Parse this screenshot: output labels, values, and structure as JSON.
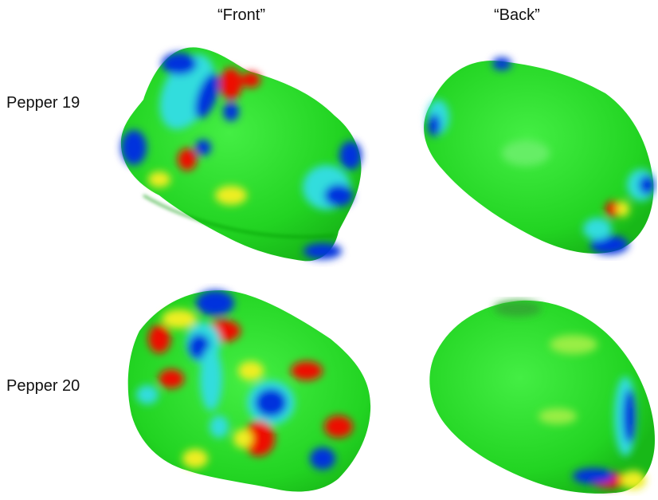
{
  "columns": {
    "front_label": "“Front”",
    "back_label": "“Back”"
  },
  "rows": {
    "pepper_19_label": "Pepper 19",
    "pepper_20_label": "Pepper 20"
  },
  "colors": {
    "background": "#ffffff",
    "base_green": "#22dd22",
    "low_blue": "#0033dd",
    "mid_cyan": "#33dddd",
    "mid_yellow": "#eeee22",
    "high_red": "#ee1100"
  }
}
